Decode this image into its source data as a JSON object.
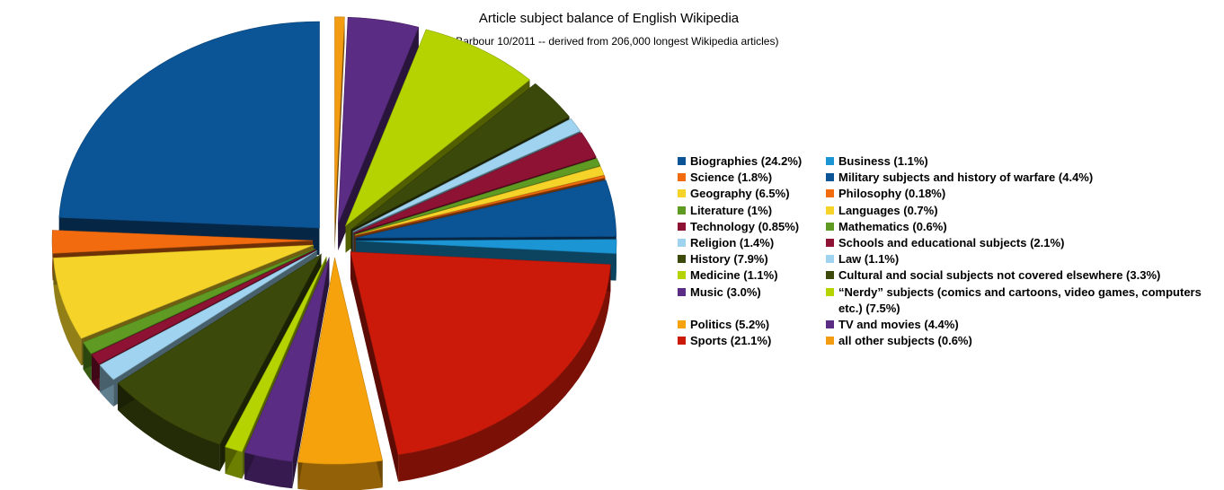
{
  "chart_data": {
    "type": "pie",
    "style": "3d-exploded",
    "title": "Article subject balance of English Wikipedia",
    "subtitle": "(E. Barbour 10/2011 -- derived from 206,000 longest Wikipedia articles)",
    "legend_position": "right",
    "slices": [
      {
        "label": "all other subjects (0.6%)",
        "value": 0.6,
        "color": "#f39c12"
      },
      {
        "label": "TV and movies (4.4%)",
        "value": 4.4,
        "color": "#5b2c83"
      },
      {
        "label": "“Nerdy” subjects (comics and cartoons, video games, computers etc.) (7.5%)",
        "value": 7.5,
        "color": "#b5d300"
      },
      {
        "label": "Cultural and social subjects not covered elsewhere (3.3%)",
        "value": 3.3,
        "color": "#3b4a0a"
      },
      {
        "label": "Law (1.1%)",
        "value": 1.1,
        "color": "#9fd3ef"
      },
      {
        "label": "Schools and educational subjects (2.1%)",
        "value": 2.1,
        "color": "#8e1233"
      },
      {
        "label": "Mathematics (0.6%)",
        "value": 0.6,
        "color": "#5f9a22"
      },
      {
        "label": "Languages (0.7%)",
        "value": 0.7,
        "color": "#f5d328"
      },
      {
        "label": "Philosophy (0.18%)",
        "value": 0.18,
        "color": "#f26b0f"
      },
      {
        "label": "Military subjects and history of warfare (4.4%)",
        "value": 4.4,
        "color": "#0b5597"
      },
      {
        "label": "Business (1.1%)",
        "value": 1.1,
        "color": "#1b95d3"
      },
      {
        "label": "Sports (21.1%)",
        "value": 21.1,
        "color": "#cc1a0a"
      },
      {
        "label": "Politics (5.2%)",
        "value": 5.2,
        "color": "#f5a20c"
      },
      {
        "label": "Music (3.0%)",
        "value": 3.0,
        "color": "#5b2c83"
      },
      {
        "label": "Medicine (1.1%)",
        "value": 1.1,
        "color": "#b5d300"
      },
      {
        "label": "History (7.9%)",
        "value": 7.9,
        "color": "#3b4a0a"
      },
      {
        "label": "Religion (1.4%)",
        "value": 1.4,
        "color": "#9fd3ef"
      },
      {
        "label": "Technology (0.85%)",
        "value": 0.85,
        "color": "#8e1233"
      },
      {
        "label": "Literature (1%)",
        "value": 1.0,
        "color": "#5f9a22"
      },
      {
        "label": "Geography (6.5%)",
        "value": 6.5,
        "color": "#f5d328"
      },
      {
        "label": "Science (1.8%)",
        "value": 1.8,
        "color": "#f26b0f"
      },
      {
        "label": "Biographies (24.2%)",
        "value": 24.2,
        "color": "#0b5597"
      }
    ],
    "legend": [
      [
        {
          "label": "Biographies (24.2%)",
          "color": "#0b5597"
        },
        {
          "label": "Business (1.1%)",
          "color": "#1b95d3"
        }
      ],
      [
        {
          "label": "Science (1.8%)",
          "color": "#f26b0f"
        },
        {
          "label": "Military subjects and history of warfare (4.4%)",
          "color": "#0b5597"
        }
      ],
      [
        {
          "label": "Geography (6.5%)",
          "color": "#f5d328"
        },
        {
          "label": "Philosophy (0.18%)",
          "color": "#f26b0f"
        }
      ],
      [
        {
          "label": "Literature (1%)",
          "color": "#5f9a22"
        },
        {
          "label": "Languages (0.7%)",
          "color": "#f5d328"
        }
      ],
      [
        {
          "label": "Technology (0.85%)",
          "color": "#8e1233"
        },
        {
          "label": "Mathematics (0.6%)",
          "color": "#5f9a22"
        }
      ],
      [
        {
          "label": "Religion (1.4%)",
          "color": "#9fd3ef"
        },
        {
          "label": "Schools and educational subjects (2.1%)",
          "color": "#8e1233"
        }
      ],
      [
        {
          "label": "History (7.9%)",
          "color": "#3b4a0a"
        },
        {
          "label": "Law (1.1%)",
          "color": "#9fd3ef"
        }
      ],
      [
        {
          "label": "Medicine (1.1%)",
          "color": "#b5d300"
        },
        {
          "label": "Cultural and social subjects not covered elsewhere (3.3%)",
          "color": "#3b4a0a"
        }
      ],
      [
        {
          "label": "Music (3.0%)",
          "color": "#5b2c83"
        },
        {
          "label": "“Nerdy” subjects (comics and cartoons, video games, computers etc.) (7.5%)",
          "color": "#b5d300"
        }
      ],
      [
        {
          "label": "Politics (5.2%)",
          "color": "#f5a20c"
        },
        {
          "label": "TV and movies (4.4%)",
          "color": "#5b2c83"
        }
      ],
      [
        {
          "label": "Sports (21.1%)",
          "color": "#cc1a0a"
        },
        {
          "label": "all other subjects (0.6%)",
          "color": "#f39c12"
        }
      ]
    ]
  }
}
